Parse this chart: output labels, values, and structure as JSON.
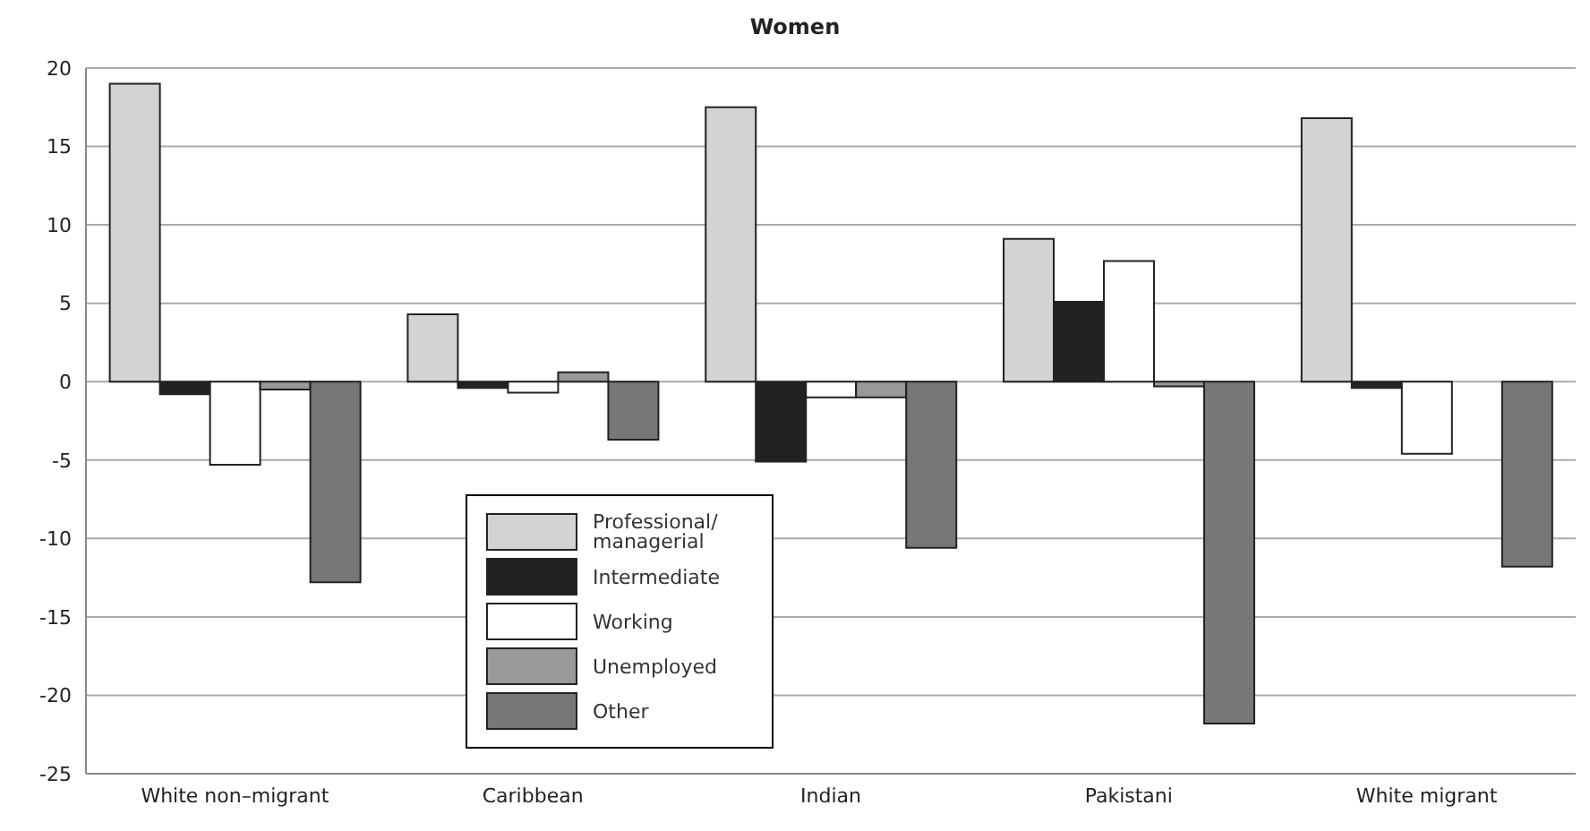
{
  "chart_data": {
    "type": "bar",
    "title": "Women",
    "categories": [
      "White non–migrant",
      "Caribbean",
      "Indian",
      "Pakistani",
      "White migrant"
    ],
    "series": [
      {
        "name": "Professional/ managerial",
        "color": "#d3d3d3",
        "values": [
          19,
          4.3,
          17.5,
          9.1,
          16.8
        ]
      },
      {
        "name": "Intermediate",
        "color": "#222222",
        "values": [
          -0.8,
          -0.4,
          -5.1,
          5.1,
          -0.4
        ]
      },
      {
        "name": "Working",
        "color": "#ffffff",
        "values": [
          -5.3,
          -0.7,
          -1,
          7.7,
          -4.6
        ]
      },
      {
        "name": "Unemployed",
        "color": "#999999",
        "values": [
          -0.5,
          0.6,
          -1,
          -0.3,
          0
        ]
      },
      {
        "name": "Other",
        "color": "#777777",
        "values": [
          -12.8,
          -3.7,
          -10.6,
          -21.8,
          -11.8
        ]
      }
    ],
    "ylim": [
      -25,
      20
    ],
    "yticks": [
      -25,
      -20,
      -15,
      -10,
      -5,
      0,
      5,
      10,
      15,
      20
    ],
    "grid": "y",
    "legend": "bottom left"
  }
}
